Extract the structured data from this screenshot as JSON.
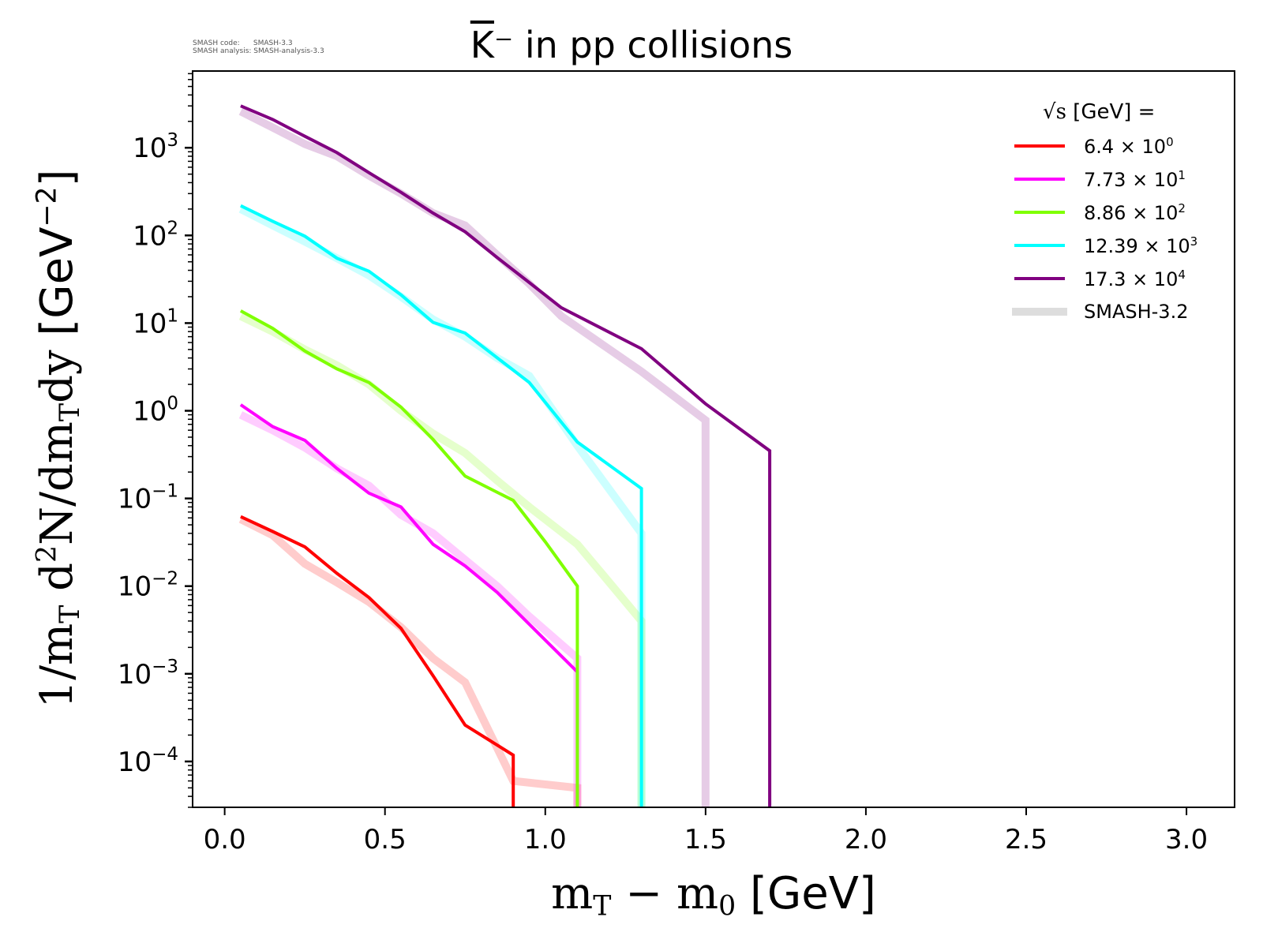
{
  "meta": {
    "code_line": "SMASH code:      SMASH-3.3",
    "analysis_line": "SMASH analysis: SMASH-analysis-3.3"
  },
  "chart_data": {
    "type": "line",
    "title": "K̅⁻ in pp collisions",
    "title_parts": {
      "particle": "K",
      "charge": "⁻",
      "rest": " in pp collisions"
    },
    "xlabel": "m_T − m_0 [GeV]",
    "xlabel_parts": {
      "m1": "m",
      "s1": "T",
      "minus": " − ",
      "m2": "m",
      "s2": "0",
      "unit": " [GeV]"
    },
    "ylabel": "1/m_T d²N/dm_Tdy [GeV⁻²]",
    "ylabel_parts": {
      "a": "1/m",
      "s1": "T",
      "b": " d",
      "p1": "2",
      "c": "N/dm",
      "s2": "T",
      "d": "dy",
      "unit": " [GeV",
      "p2": "−2",
      "close": "]"
    },
    "xscale": "linear",
    "yscale": "log",
    "xlim": [
      -0.1,
      3.15
    ],
    "ylim": [
      3e-05,
      7500
    ],
    "xticks": [
      0.0,
      0.5,
      1.0,
      1.5,
      2.0,
      2.5,
      3.0
    ],
    "xtick_labels": [
      "0.0",
      "0.5",
      "1.0",
      "1.5",
      "2.0",
      "2.5",
      "3.0"
    ],
    "yticks": [
      0.0001,
      0.001,
      0.01,
      0.1,
      1,
      10,
      100,
      1000
    ],
    "ytick_labels": [
      {
        "base": "10",
        "exp": "−4"
      },
      {
        "base": "10",
        "exp": "−3"
      },
      {
        "base": "10",
        "exp": "−2"
      },
      {
        "base": "10",
        "exp": "−1"
      },
      {
        "base": "10",
        "exp": "0"
      },
      {
        "base": "10",
        "exp": "1"
      },
      {
        "base": "10",
        "exp": "2"
      },
      {
        "base": "10",
        "exp": "3"
      }
    ],
    "grid": false,
    "legend": {
      "placement": "top-right",
      "title_sqrt": "√s",
      "title_rest": " [GeV] =",
      "entries": [
        {
          "base": "6.4 × 10",
          "exp": "0",
          "color": "#ff0000"
        },
        {
          "base": "7.73 × 10",
          "exp": "1",
          "color": "#ff00ff"
        },
        {
          "base": "8.86 × 10",
          "exp": "2",
          "color": "#7fff00"
        },
        {
          "base": "12.39 × 10",
          "exp": "3",
          "color": "#00ffff"
        },
        {
          "base": "17.3 × 10",
          "exp": "4",
          "color": "#800080"
        },
        {
          "base": "SMASH-3.2",
          "exp": "",
          "color": "#dddddd"
        }
      ]
    },
    "series": [
      {
        "name": "6.4 × 10^0",
        "color": "#ff0000",
        "x": [
          0.05,
          0.15,
          0.25,
          0.35,
          0.45,
          0.55,
          0.65,
          0.75,
          0.9,
          0.9
        ],
        "y": [
          0.062,
          0.042,
          0.028,
          0.014,
          0.0074,
          0.0033,
          0.00095,
          0.00026,
          0.000118,
          1e-05
        ],
        "reference": {
          "x": [
            0.05,
            0.15,
            0.25,
            0.35,
            0.45,
            0.55,
            0.65,
            0.75,
            0.9,
            1.1,
            1.1
          ],
          "y": [
            0.058,
            0.038,
            0.018,
            0.011,
            0.0066,
            0.0034,
            0.0015,
            0.0008,
            6e-05,
            5e-05,
            1e-05
          ]
        }
      },
      {
        "name": "7.73 × 10^1",
        "color": "#ff00ff",
        "x": [
          0.05,
          0.15,
          0.25,
          0.35,
          0.45,
          0.55,
          0.65,
          0.75,
          0.85,
          1.1,
          1.1
        ],
        "y": [
          1.17,
          0.66,
          0.46,
          0.22,
          0.115,
          0.08,
          0.03,
          0.017,
          0.0085,
          0.00105,
          1e-05
        ],
        "reference": {
          "x": [
            0.05,
            0.15,
            0.25,
            0.35,
            0.45,
            0.55,
            0.65,
            0.75,
            0.85,
            0.95,
            1.1,
            1.1
          ],
          "y": [
            0.9,
            0.6,
            0.38,
            0.22,
            0.14,
            0.065,
            0.04,
            0.02,
            0.01,
            0.0045,
            0.0015,
            1e-05
          ]
        }
      },
      {
        "name": "8.86 × 10^2",
        "color": "#7fff00",
        "x": [
          0.05,
          0.15,
          0.25,
          0.35,
          0.45,
          0.55,
          0.65,
          0.75,
          0.9,
          1.0,
          1.1,
          1.1
        ],
        "y": [
          13.8,
          8.7,
          4.8,
          3.0,
          2.1,
          1.1,
          0.47,
          0.18,
          0.095,
          0.032,
          0.01,
          1e-05
        ],
        "reference": {
          "x": [
            0.05,
            0.15,
            0.25,
            0.35,
            0.45,
            0.55,
            0.65,
            0.75,
            0.85,
            0.95,
            1.1,
            1.2,
            1.3,
            1.3
          ],
          "y": [
            12,
            8,
            5,
            3.3,
            2.0,
            1.0,
            0.55,
            0.33,
            0.16,
            0.08,
            0.03,
            0.011,
            0.004,
            1e-05
          ]
        }
      },
      {
        "name": "12.39 × 10^3",
        "color": "#00ffff",
        "x": [
          0.05,
          0.15,
          0.25,
          0.35,
          0.45,
          0.55,
          0.65,
          0.75,
          0.95,
          1.1,
          1.3,
          1.3
        ],
        "y": [
          218,
          145,
          98,
          55,
          39,
          21,
          10.2,
          7.7,
          2.1,
          0.44,
          0.13,
          1e-05
        ],
        "reference": {
          "x": [
            0.05,
            0.15,
            0.25,
            0.35,
            0.45,
            0.55,
            0.65,
            0.75,
            0.85,
            0.95,
            1.1,
            1.3,
            1.3
          ],
          "y": [
            200,
            130,
            85,
            55,
            35,
            20,
            11,
            7,
            4.0,
            2.5,
            0.4,
            0.04,
            1e-05
          ]
        }
      },
      {
        "name": "17.3 × 10^4",
        "color": "#800080",
        "x": [
          0.05,
          0.15,
          0.25,
          0.35,
          0.45,
          0.55,
          0.65,
          0.75,
          0.85,
          0.95,
          1.05,
          1.3,
          1.5,
          1.7,
          1.7
        ],
        "y": [
          3000,
          2100,
          1350,
          880,
          520,
          310,
          180,
          110,
          56,
          29,
          15,
          5.1,
          1.2,
          0.35,
          1e-05
        ],
        "reference": {
          "x": [
            0.05,
            0.15,
            0.25,
            0.35,
            0.45,
            0.55,
            0.65,
            0.75,
            0.85,
            0.95,
            1.05,
            1.3,
            1.5,
            1.5
          ],
          "y": [
            2600,
            1700,
            1100,
            800,
            480,
            300,
            180,
            130,
            60,
            28,
            12,
            2.8,
            0.78,
            1e-05
          ]
        }
      }
    ]
  }
}
